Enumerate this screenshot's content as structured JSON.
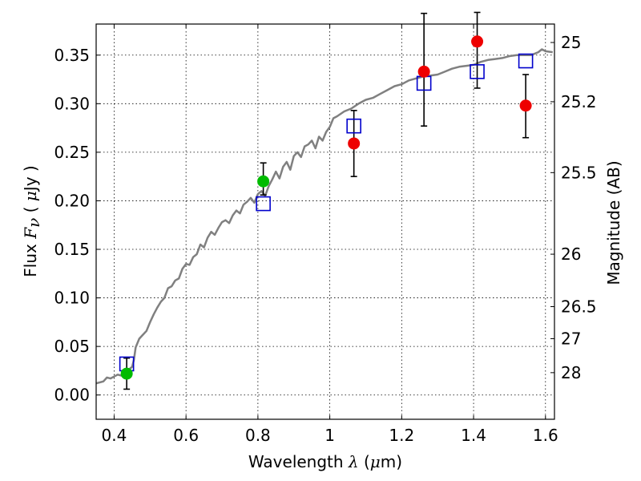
{
  "chart_data": {
    "type": "scatter",
    "xlabel": {
      "prefix": "Wavelength  ",
      "symbol": "λ",
      "unit_open": " (",
      "unit_mu": "μ",
      "unit_rest": "m)"
    },
    "ylabel": {
      "prefix": "Flux  ",
      "symbol": "F",
      "subscript": "ν",
      "paren_open": "  ( ",
      "unit_mu": "μ",
      "unit_rest": "Jy )"
    },
    "y2label": "Magnitude (AB)",
    "xlim": [
      0.35,
      1.625
    ],
    "ylim": [
      -0.025,
      0.382
    ],
    "x_ticks": [
      {
        "value": 0.4,
        "label": "0.4"
      },
      {
        "value": 0.6,
        "label": "0.6"
      },
      {
        "value": 0.8,
        "label": "0.8"
      },
      {
        "value": 1.0,
        "label": "1"
      },
      {
        "value": 1.2,
        "label": "1.2"
      },
      {
        "value": 1.4,
        "label": "1.4"
      },
      {
        "value": 1.6,
        "label": "1.6"
      }
    ],
    "y_ticks": [
      {
        "value": 0.0,
        "label": "0.00"
      },
      {
        "value": 0.05,
        "label": "0.05"
      },
      {
        "value": 0.1,
        "label": "0.10"
      },
      {
        "value": 0.15,
        "label": "0.15"
      },
      {
        "value": 0.2,
        "label": "0.20"
      },
      {
        "value": 0.25,
        "label": "0.25"
      },
      {
        "value": 0.3,
        "label": "0.30"
      },
      {
        "value": 0.35,
        "label": "0.35"
      }
    ],
    "y2_ticks": [
      {
        "label": "25",
        "flux": 0.363
      },
      {
        "label": "25.2",
        "flux": 0.302
      },
      {
        "label": "25.5",
        "flux": 0.229
      },
      {
        "label": "26",
        "flux": 0.145
      },
      {
        "label": "26.5",
        "flux": 0.091
      },
      {
        "label": "27",
        "flux": 0.058
      },
      {
        "label": "28",
        "flux": 0.023
      }
    ],
    "grid": true,
    "model_spectrum": {
      "color": "#808080",
      "x": [
        0.35,
        0.37,
        0.38,
        0.39,
        0.4,
        0.41,
        0.42,
        0.43,
        0.44,
        0.45,
        0.455,
        0.46,
        0.47,
        0.48,
        0.49,
        0.5,
        0.51,
        0.52,
        0.53,
        0.54,
        0.55,
        0.56,
        0.57,
        0.58,
        0.59,
        0.6,
        0.61,
        0.62,
        0.63,
        0.64,
        0.65,
        0.66,
        0.67,
        0.68,
        0.69,
        0.7,
        0.71,
        0.72,
        0.73,
        0.74,
        0.75,
        0.76,
        0.77,
        0.78,
        0.79,
        0.8,
        0.81,
        0.82,
        0.83,
        0.84,
        0.85,
        0.86,
        0.87,
        0.88,
        0.89,
        0.9,
        0.91,
        0.92,
        0.93,
        0.94,
        0.95,
        0.96,
        0.97,
        0.98,
        0.99,
        1.0,
        1.01,
        1.02,
        1.04,
        1.06,
        1.08,
        1.1,
        1.12,
        1.14,
        1.16,
        1.18,
        1.2,
        1.22,
        1.24,
        1.26,
        1.28,
        1.3,
        1.32,
        1.34,
        1.36,
        1.38,
        1.4,
        1.42,
        1.44,
        1.46,
        1.48,
        1.5,
        1.52,
        1.54,
        1.56,
        1.58,
        1.59,
        1.6,
        1.62
      ],
      "y": [
        0.012,
        0.014,
        0.018,
        0.017,
        0.019,
        0.021,
        0.02,
        0.023,
        0.026,
        0.029,
        0.036,
        0.049,
        0.058,
        0.062,
        0.066,
        0.075,
        0.083,
        0.09,
        0.096,
        0.1,
        0.11,
        0.112,
        0.118,
        0.12,
        0.13,
        0.135,
        0.134,
        0.142,
        0.145,
        0.155,
        0.152,
        0.162,
        0.168,
        0.165,
        0.172,
        0.178,
        0.18,
        0.177,
        0.185,
        0.19,
        0.187,
        0.196,
        0.199,
        0.203,
        0.198,
        0.207,
        0.21,
        0.205,
        0.215,
        0.222,
        0.23,
        0.223,
        0.235,
        0.24,
        0.232,
        0.246,
        0.25,
        0.245,
        0.256,
        0.258,
        0.262,
        0.254,
        0.266,
        0.262,
        0.271,
        0.276,
        0.285,
        0.287,
        0.292,
        0.295,
        0.3,
        0.304,
        0.306,
        0.31,
        0.314,
        0.318,
        0.32,
        0.324,
        0.326,
        0.328,
        0.329,
        0.33,
        0.333,
        0.336,
        0.338,
        0.339,
        0.34,
        0.343,
        0.345,
        0.346,
        0.347,
        0.349,
        0.35,
        0.35,
        0.35,
        0.353,
        0.356,
        0.354,
        0.353
      ]
    },
    "series": [
      {
        "marker": "square",
        "color": "#0000cc",
        "x": [
          0.435,
          0.815,
          1.067,
          1.262,
          1.41,
          1.545
        ],
        "y": [
          0.032,
          0.197,
          0.277,
          0.321,
          0.333,
          0.344
        ]
      },
      {
        "marker": "circle",
        "color": "#00bb00",
        "x": [
          0.435,
          0.815
        ],
        "y": [
          0.022,
          0.22
        ],
        "yerr_low": [
          0.016,
          0.014
        ],
        "yerr_high": [
          0.016,
          0.019
        ]
      },
      {
        "marker": "circle",
        "color": "#ee0000",
        "x": [
          1.067,
          1.262,
          1.41,
          1.545
        ],
        "y": [
          0.259,
          0.333,
          0.364,
          0.298
        ],
        "yerr_low": [
          0.034,
          0.056,
          0.048,
          0.033
        ],
        "yerr_high": [
          0.034,
          0.06,
          0.03,
          0.032
        ]
      }
    ]
  }
}
